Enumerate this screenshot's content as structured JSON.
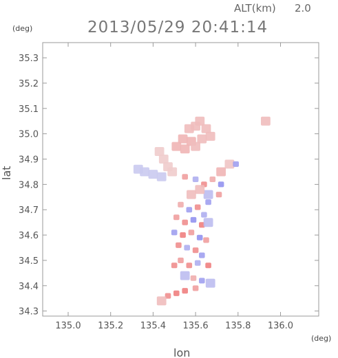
{
  "header": {
    "timestamp": "2013/05/29 20:41:14",
    "altitude_label": "ALT(km)",
    "altitude_value": "2.0"
  },
  "chart_data": {
    "type": "heatmap",
    "title": "2013/05/29 20:41:14",
    "subtitle": "ALT(km) 2.0",
    "xlabel": "lon",
    "ylabel": "lat",
    "x_unit": "(deg)",
    "y_unit": "(deg)",
    "xlim": [
      134.88,
      136.18
    ],
    "ylim": [
      34.28,
      35.36
    ],
    "x_ticks": [
      135.0,
      135.2,
      135.4,
      135.6,
      135.8,
      136.0
    ],
    "x_tick_labels": [
      "135.0",
      "135.2",
      "135.4",
      "135.6",
      "135.8",
      "136.0"
    ],
    "y_ticks": [
      34.3,
      34.4,
      34.5,
      34.6,
      34.7,
      34.8,
      34.9,
      35.0,
      35.1,
      35.2,
      35.3
    ],
    "y_tick_labels": [
      "34.3",
      "34.4",
      "34.5",
      "34.6",
      "34.7",
      "34.8",
      "34.9",
      "35.0",
      "35.1",
      "35.2",
      "35.3"
    ],
    "grid": false,
    "colors": {
      "positive": "#e86060",
      "negative": "#6a6ae0",
      "weak_positive": "#f3b9b9",
      "weak_negative": "#c4c6f2",
      "axis": "#9a9a9a"
    },
    "cells": [
      {
        "lon": 135.6,
        "lat": 35.03,
        "value": 0.3
      },
      {
        "lon": 135.62,
        "lat": 35.05,
        "value": 0.3
      },
      {
        "lon": 135.57,
        "lat": 35.02,
        "value": 0.3
      },
      {
        "lon": 135.65,
        "lat": 35.02,
        "value": 0.3
      },
      {
        "lon": 135.54,
        "lat": 34.98,
        "value": 0.35
      },
      {
        "lon": 135.58,
        "lat": 34.97,
        "value": 0.35
      },
      {
        "lon": 135.63,
        "lat": 34.98,
        "value": 0.3
      },
      {
        "lon": 135.67,
        "lat": 34.99,
        "value": 0.3
      },
      {
        "lon": 135.51,
        "lat": 34.95,
        "value": 0.35
      },
      {
        "lon": 135.55,
        "lat": 34.94,
        "value": 0.35
      },
      {
        "lon": 135.6,
        "lat": 34.95,
        "value": 0.3
      },
      {
        "lon": 135.93,
        "lat": 35.05,
        "value": 0.3
      },
      {
        "lon": 135.43,
        "lat": 34.93,
        "value": 0.2
      },
      {
        "lon": 135.45,
        "lat": 34.9,
        "value": 0.2
      },
      {
        "lon": 135.47,
        "lat": 34.87,
        "value": 0.2
      },
      {
        "lon": 135.49,
        "lat": 34.85,
        "value": 0.2
      },
      {
        "lon": 135.36,
        "lat": 34.85,
        "value": -0.2
      },
      {
        "lon": 135.4,
        "lat": 34.84,
        "value": -0.2
      },
      {
        "lon": 135.44,
        "lat": 34.83,
        "value": -0.2
      },
      {
        "lon": 135.33,
        "lat": 34.86,
        "value": -0.2
      },
      {
        "lon": 135.76,
        "lat": 34.88,
        "value": 0.25
      },
      {
        "lon": 135.79,
        "lat": 34.88,
        "value": -0.5
      },
      {
        "lon": 135.55,
        "lat": 34.83,
        "value": 0.5
      },
      {
        "lon": 135.6,
        "lat": 34.82,
        "value": -0.4
      },
      {
        "lon": 135.64,
        "lat": 34.8,
        "value": 0.6
      },
      {
        "lon": 135.68,
        "lat": 34.82,
        "value": 0.4
      },
      {
        "lon": 135.72,
        "lat": 34.8,
        "value": -0.6
      },
      {
        "lon": 135.71,
        "lat": 34.76,
        "value": 0.5
      },
      {
        "lon": 135.66,
        "lat": 34.76,
        "value": -0.3
      },
      {
        "lon": 135.62,
        "lat": 34.78,
        "value": 0.3
      },
      {
        "lon": 135.72,
        "lat": 34.85,
        "value": 0.35
      },
      {
        "lon": 135.53,
        "lat": 34.72,
        "value": 0.4
      },
      {
        "lon": 135.57,
        "lat": 34.7,
        "value": -0.5
      },
      {
        "lon": 135.61,
        "lat": 34.71,
        "value": 0.6
      },
      {
        "lon": 135.64,
        "lat": 34.68,
        "value": -0.4
      },
      {
        "lon": 135.51,
        "lat": 34.67,
        "value": 0.5
      },
      {
        "lon": 135.55,
        "lat": 34.65,
        "value": 0.6
      },
      {
        "lon": 135.59,
        "lat": 34.66,
        "value": -0.6
      },
      {
        "lon": 135.63,
        "lat": 34.64,
        "value": 0.7
      },
      {
        "lon": 135.66,
        "lat": 34.65,
        "value": -0.3
      },
      {
        "lon": 135.5,
        "lat": 34.61,
        "value": -0.5
      },
      {
        "lon": 135.54,
        "lat": 34.6,
        "value": 0.7
      },
      {
        "lon": 135.58,
        "lat": 34.61,
        "value": 0.5
      },
      {
        "lon": 135.62,
        "lat": 34.59,
        "value": -0.6
      },
      {
        "lon": 135.65,
        "lat": 34.58,
        "value": 0.5
      },
      {
        "lon": 135.52,
        "lat": 34.56,
        "value": 0.6
      },
      {
        "lon": 135.56,
        "lat": 34.55,
        "value": -0.4
      },
      {
        "lon": 135.6,
        "lat": 34.54,
        "value": 0.6
      },
      {
        "lon": 135.63,
        "lat": 34.52,
        "value": -0.5
      },
      {
        "lon": 135.53,
        "lat": 34.5,
        "value": 0.5
      },
      {
        "lon": 135.57,
        "lat": 34.48,
        "value": 0.6
      },
      {
        "lon": 135.61,
        "lat": 34.49,
        "value": -0.4
      },
      {
        "lon": 135.66,
        "lat": 34.48,
        "value": 0.7
      },
      {
        "lon": 135.5,
        "lat": 34.48,
        "value": 0.6
      },
      {
        "lon": 135.55,
        "lat": 34.44,
        "value": -0.3
      },
      {
        "lon": 135.59,
        "lat": 34.43,
        "value": 0.4
      },
      {
        "lon": 135.63,
        "lat": 34.42,
        "value": -0.5
      },
      {
        "lon": 135.67,
        "lat": 34.41,
        "value": -0.3
      },
      {
        "lon": 135.6,
        "lat": 34.39,
        "value": 0.5
      },
      {
        "lon": 135.55,
        "lat": 34.38,
        "value": 0.7
      },
      {
        "lon": 135.51,
        "lat": 34.37,
        "value": 0.7
      },
      {
        "lon": 135.47,
        "lat": 34.36,
        "value": 0.6
      },
      {
        "lon": 135.44,
        "lat": 34.34,
        "value": 0.3
      },
      {
        "lon": 135.66,
        "lat": 34.73,
        "value": -0.5
      },
      {
        "lon": 135.58,
        "lat": 34.76,
        "value": 0.3
      }
    ]
  }
}
